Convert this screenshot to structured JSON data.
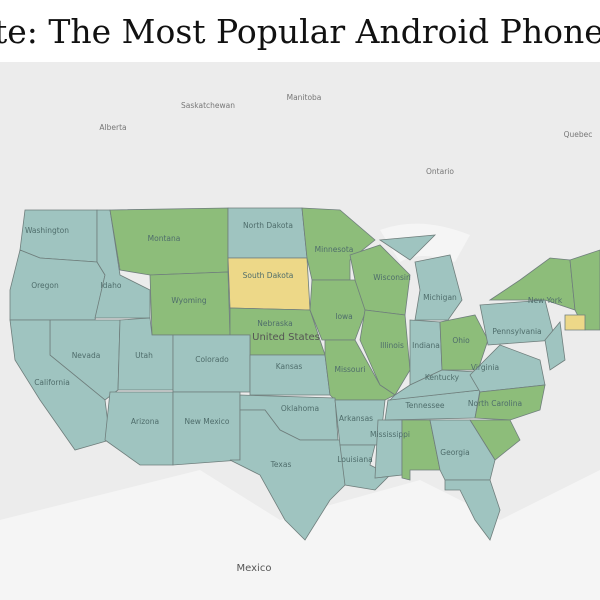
{
  "title": "te: The Most Popular Android Phones c",
  "places": [
    "Alberta",
    "Saskatchewan",
    "Manitoba",
    "Ontario",
    "Quebec",
    "Washington",
    "Oregon",
    "Idaho",
    "Montana",
    "Wyoming",
    "North Dakota",
    "South Dakota",
    "Nebraska",
    "Minnesota",
    "Iowa",
    "Wisconsin",
    "Michigan",
    "Illinois",
    "Indiana",
    "Ohio",
    "Pennsylvania",
    "New York",
    "Nevada",
    "Utah",
    "Colorado",
    "Kansas",
    "Missouri",
    "California",
    "Arizona",
    "New Mexico",
    "Oklahoma",
    "Texas",
    "Arkansas",
    "Tennessee",
    "Kentucky",
    "Virginia",
    "North Carolina",
    "Georgia",
    "Mississippi",
    "Louisiana",
    "United States",
    "Mexico"
  ]
}
